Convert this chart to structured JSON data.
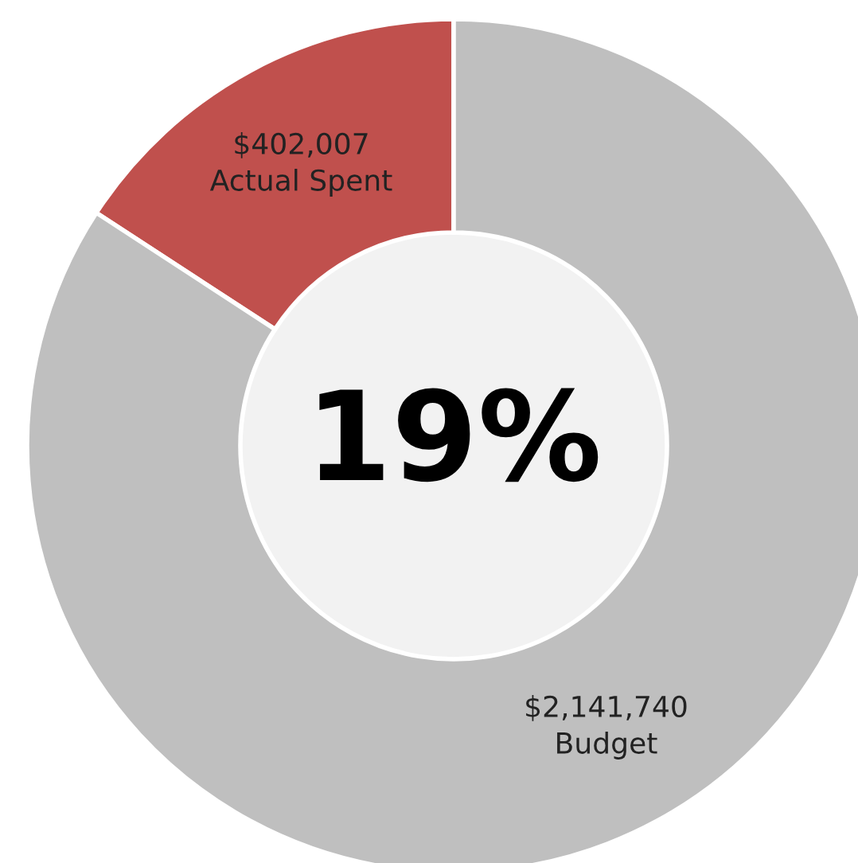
{
  "chart_data": {
    "type": "donut",
    "categories": [
      "Actual Spent",
      "Budget"
    ],
    "values": [
      402007,
      2141740
    ],
    "value_labels": [
      "$402,007",
      "$2,141,740"
    ],
    "colors": [
      "#c0504d",
      "#bfbfbf"
    ],
    "annotations": [
      "19%"
    ],
    "legend": false
  }
}
